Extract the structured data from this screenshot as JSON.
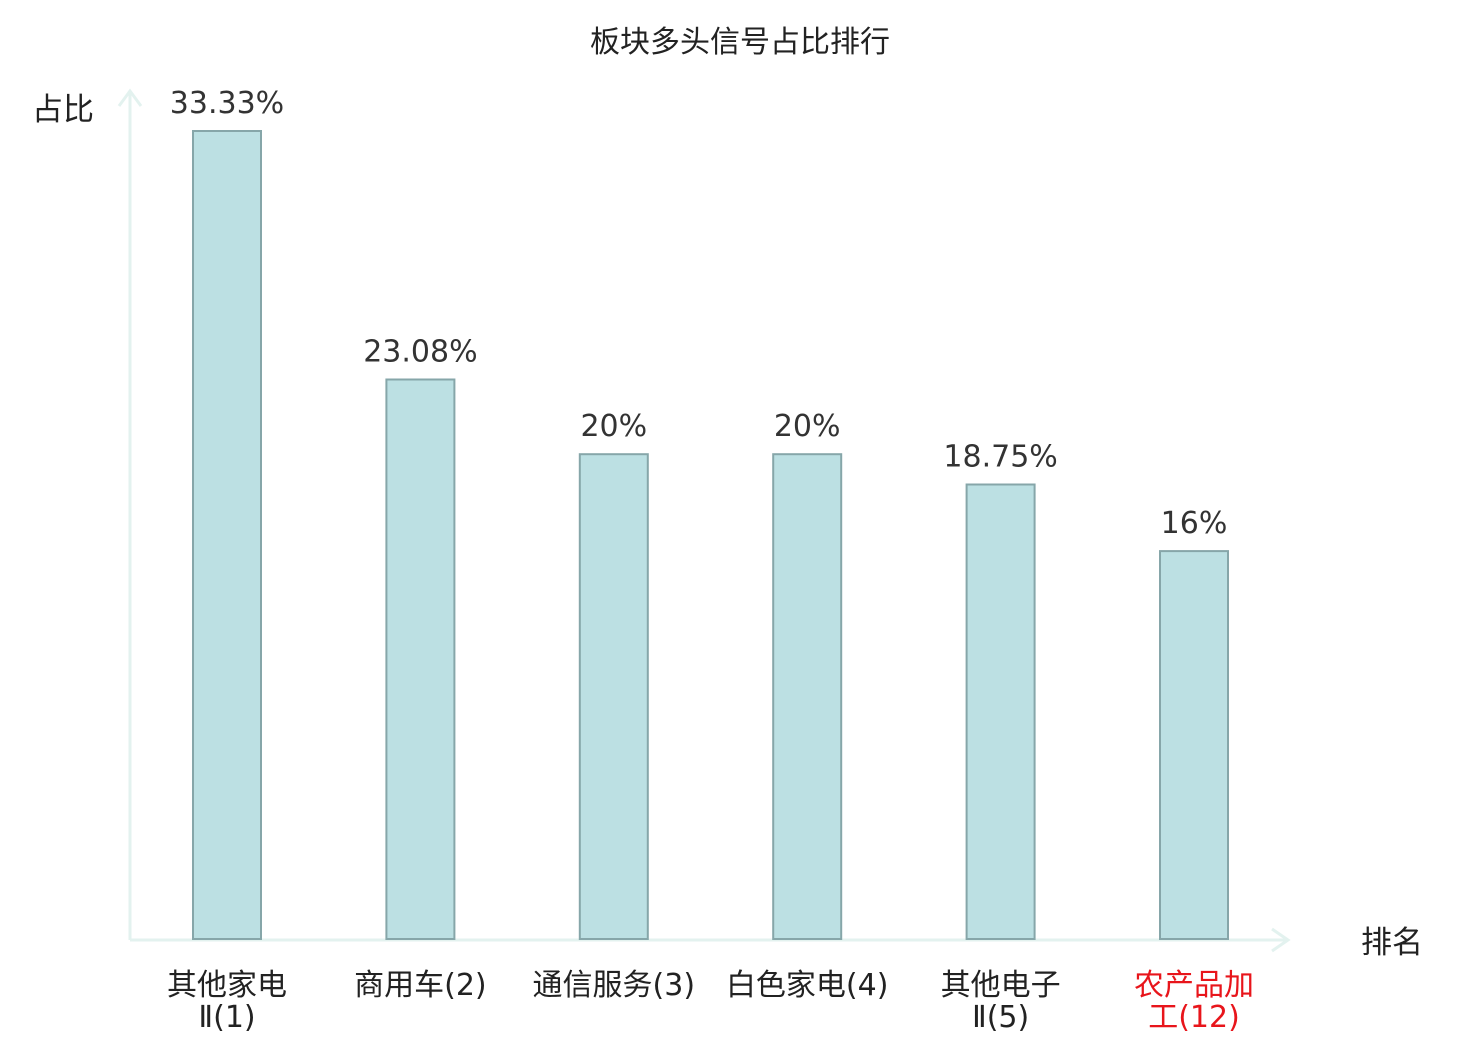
{
  "chart_data": {
    "type": "bar",
    "title": "板块多头信号占比排行",
    "ylabel": "占比",
    "xlabel": "排名",
    "categories": [
      {
        "name": "其他家电Ⅱ",
        "rank": "(1)",
        "lines": [
          "其他家电",
          "Ⅱ(1)"
        ],
        "highlight": false
      },
      {
        "name": "商用车",
        "rank": "(2)",
        "lines": [
          "商用车(2)"
        ],
        "highlight": false
      },
      {
        "name": "通信服务",
        "rank": "(3)",
        "lines": [
          "通信服务(3)"
        ],
        "highlight": false
      },
      {
        "name": "白色家电",
        "rank": "(4)",
        "lines": [
          "白色家电(4)"
        ],
        "highlight": false
      },
      {
        "name": "其他电子Ⅱ",
        "rank": "(5)",
        "lines": [
          "其他电子",
          "Ⅱ(5)"
        ],
        "highlight": false
      },
      {
        "name": "农产品加工",
        "rank": "(12)",
        "lines": [
          "农产品加",
          "工(12)"
        ],
        "highlight": true
      }
    ],
    "values": [
      33.33,
      23.08,
      20,
      20,
      18.75,
      16
    ],
    "value_labels": [
      "33.33%",
      "23.08%",
      "20%",
      "20%",
      "18.75%",
      "16%"
    ],
    "ylim": [
      0,
      35
    ],
    "grid": false,
    "legend": "none"
  },
  "colors": {
    "bar_fill": "#bce0e3",
    "bar_stroke": "#86a6a9",
    "axis": "#e3f2ef",
    "label_default": "#222222",
    "label_highlight": "#e8151b"
  }
}
